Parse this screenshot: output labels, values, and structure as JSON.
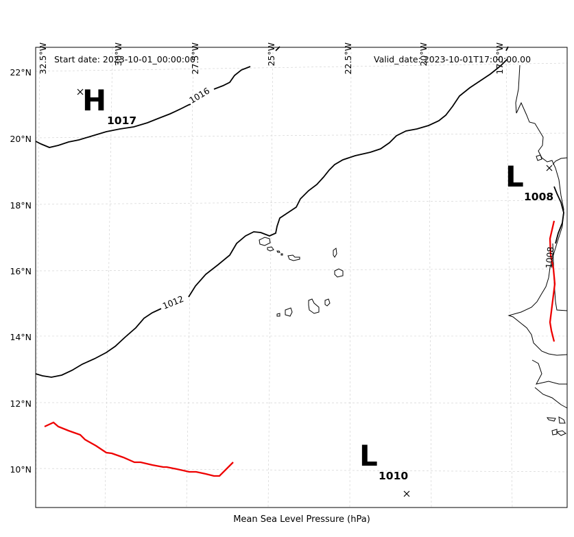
{
  "header": {
    "start_date": "Start date: 2023-10-01_00:00:00",
    "valid_date": "Valid_date: 2023-10-01T17:00:00.00"
  },
  "footer": {
    "variable_label": "Mean Sea Level Pressure (hPa)"
  },
  "axes": {
    "lon_ticks": [
      "32.5°W",
      "30°W",
      "27.5°W",
      "25°W",
      "22.5°W",
      "20°W",
      "17.5°W"
    ],
    "lat_ticks": [
      "22°N",
      "20°N",
      "18°N",
      "16°N",
      "14°N",
      "12°N",
      "10°N"
    ],
    "gridlines": true
  },
  "pressure_centers": [
    {
      "type": "H",
      "value": "1017",
      "lon": -31.0,
      "lat": 21.4
    },
    {
      "type": "L",
      "value": "1008",
      "lon": -16.0,
      "lat": 19.1
    },
    {
      "type": "L",
      "value": "1010",
      "lon": -20.7,
      "lat": 9.3
    }
  ],
  "isobars": [
    {
      "label": "1016"
    },
    {
      "label": "1012"
    },
    {
      "label": "1008"
    }
  ],
  "fronts": [
    {
      "color": "#ee0000"
    },
    {
      "color": "#ee0000"
    }
  ],
  "colors": {
    "isobar": "#000000",
    "front": "#ee0000",
    "grid": "#cccccc"
  }
}
